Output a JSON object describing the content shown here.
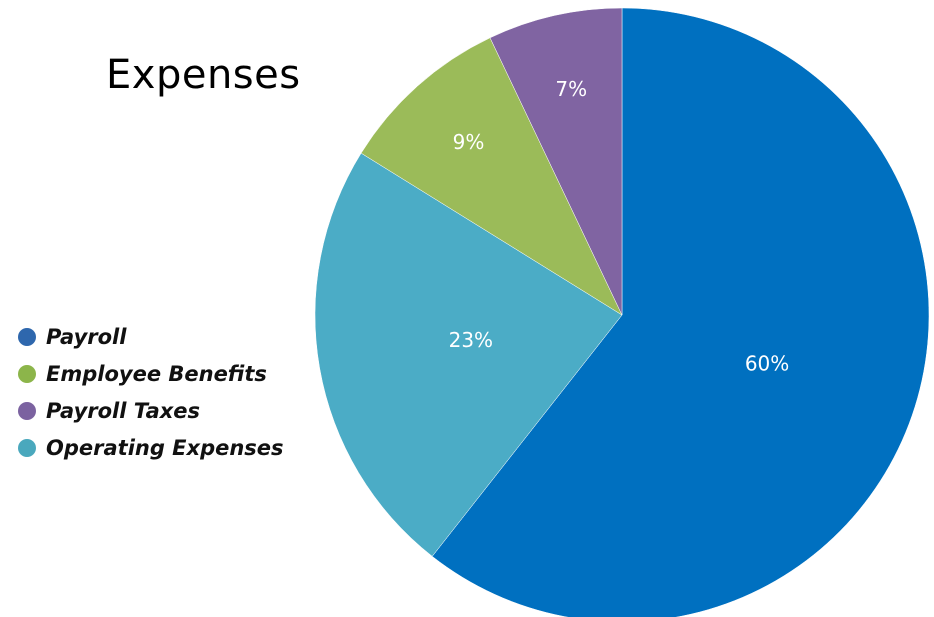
{
  "chart_data": {
    "type": "pie",
    "title": "Expenses",
    "slices": [
      {
        "name": "Payroll",
        "value": 60,
        "label": "60%",
        "color": "#0070C0"
      },
      {
        "name": "Operating Expenses",
        "value": 23,
        "label": "23%",
        "color": "#4BACC6"
      },
      {
        "name": "Employee Benefits",
        "value": 9,
        "label": "9%",
        "color": "#9BBB59"
      },
      {
        "name": "Payroll Taxes",
        "value": 7,
        "label": "7%",
        "color": "#8064A2"
      }
    ],
    "legend": [
      {
        "label": "Payroll",
        "color": "#2E67AD"
      },
      {
        "label": "Employee Benefits",
        "color": "#8CB54A"
      },
      {
        "label": "Payroll Taxes",
        "color": "#7B62A0"
      },
      {
        "label": "Operating Expenses",
        "color": "#4AA8BD"
      }
    ],
    "legend_position": "left"
  }
}
